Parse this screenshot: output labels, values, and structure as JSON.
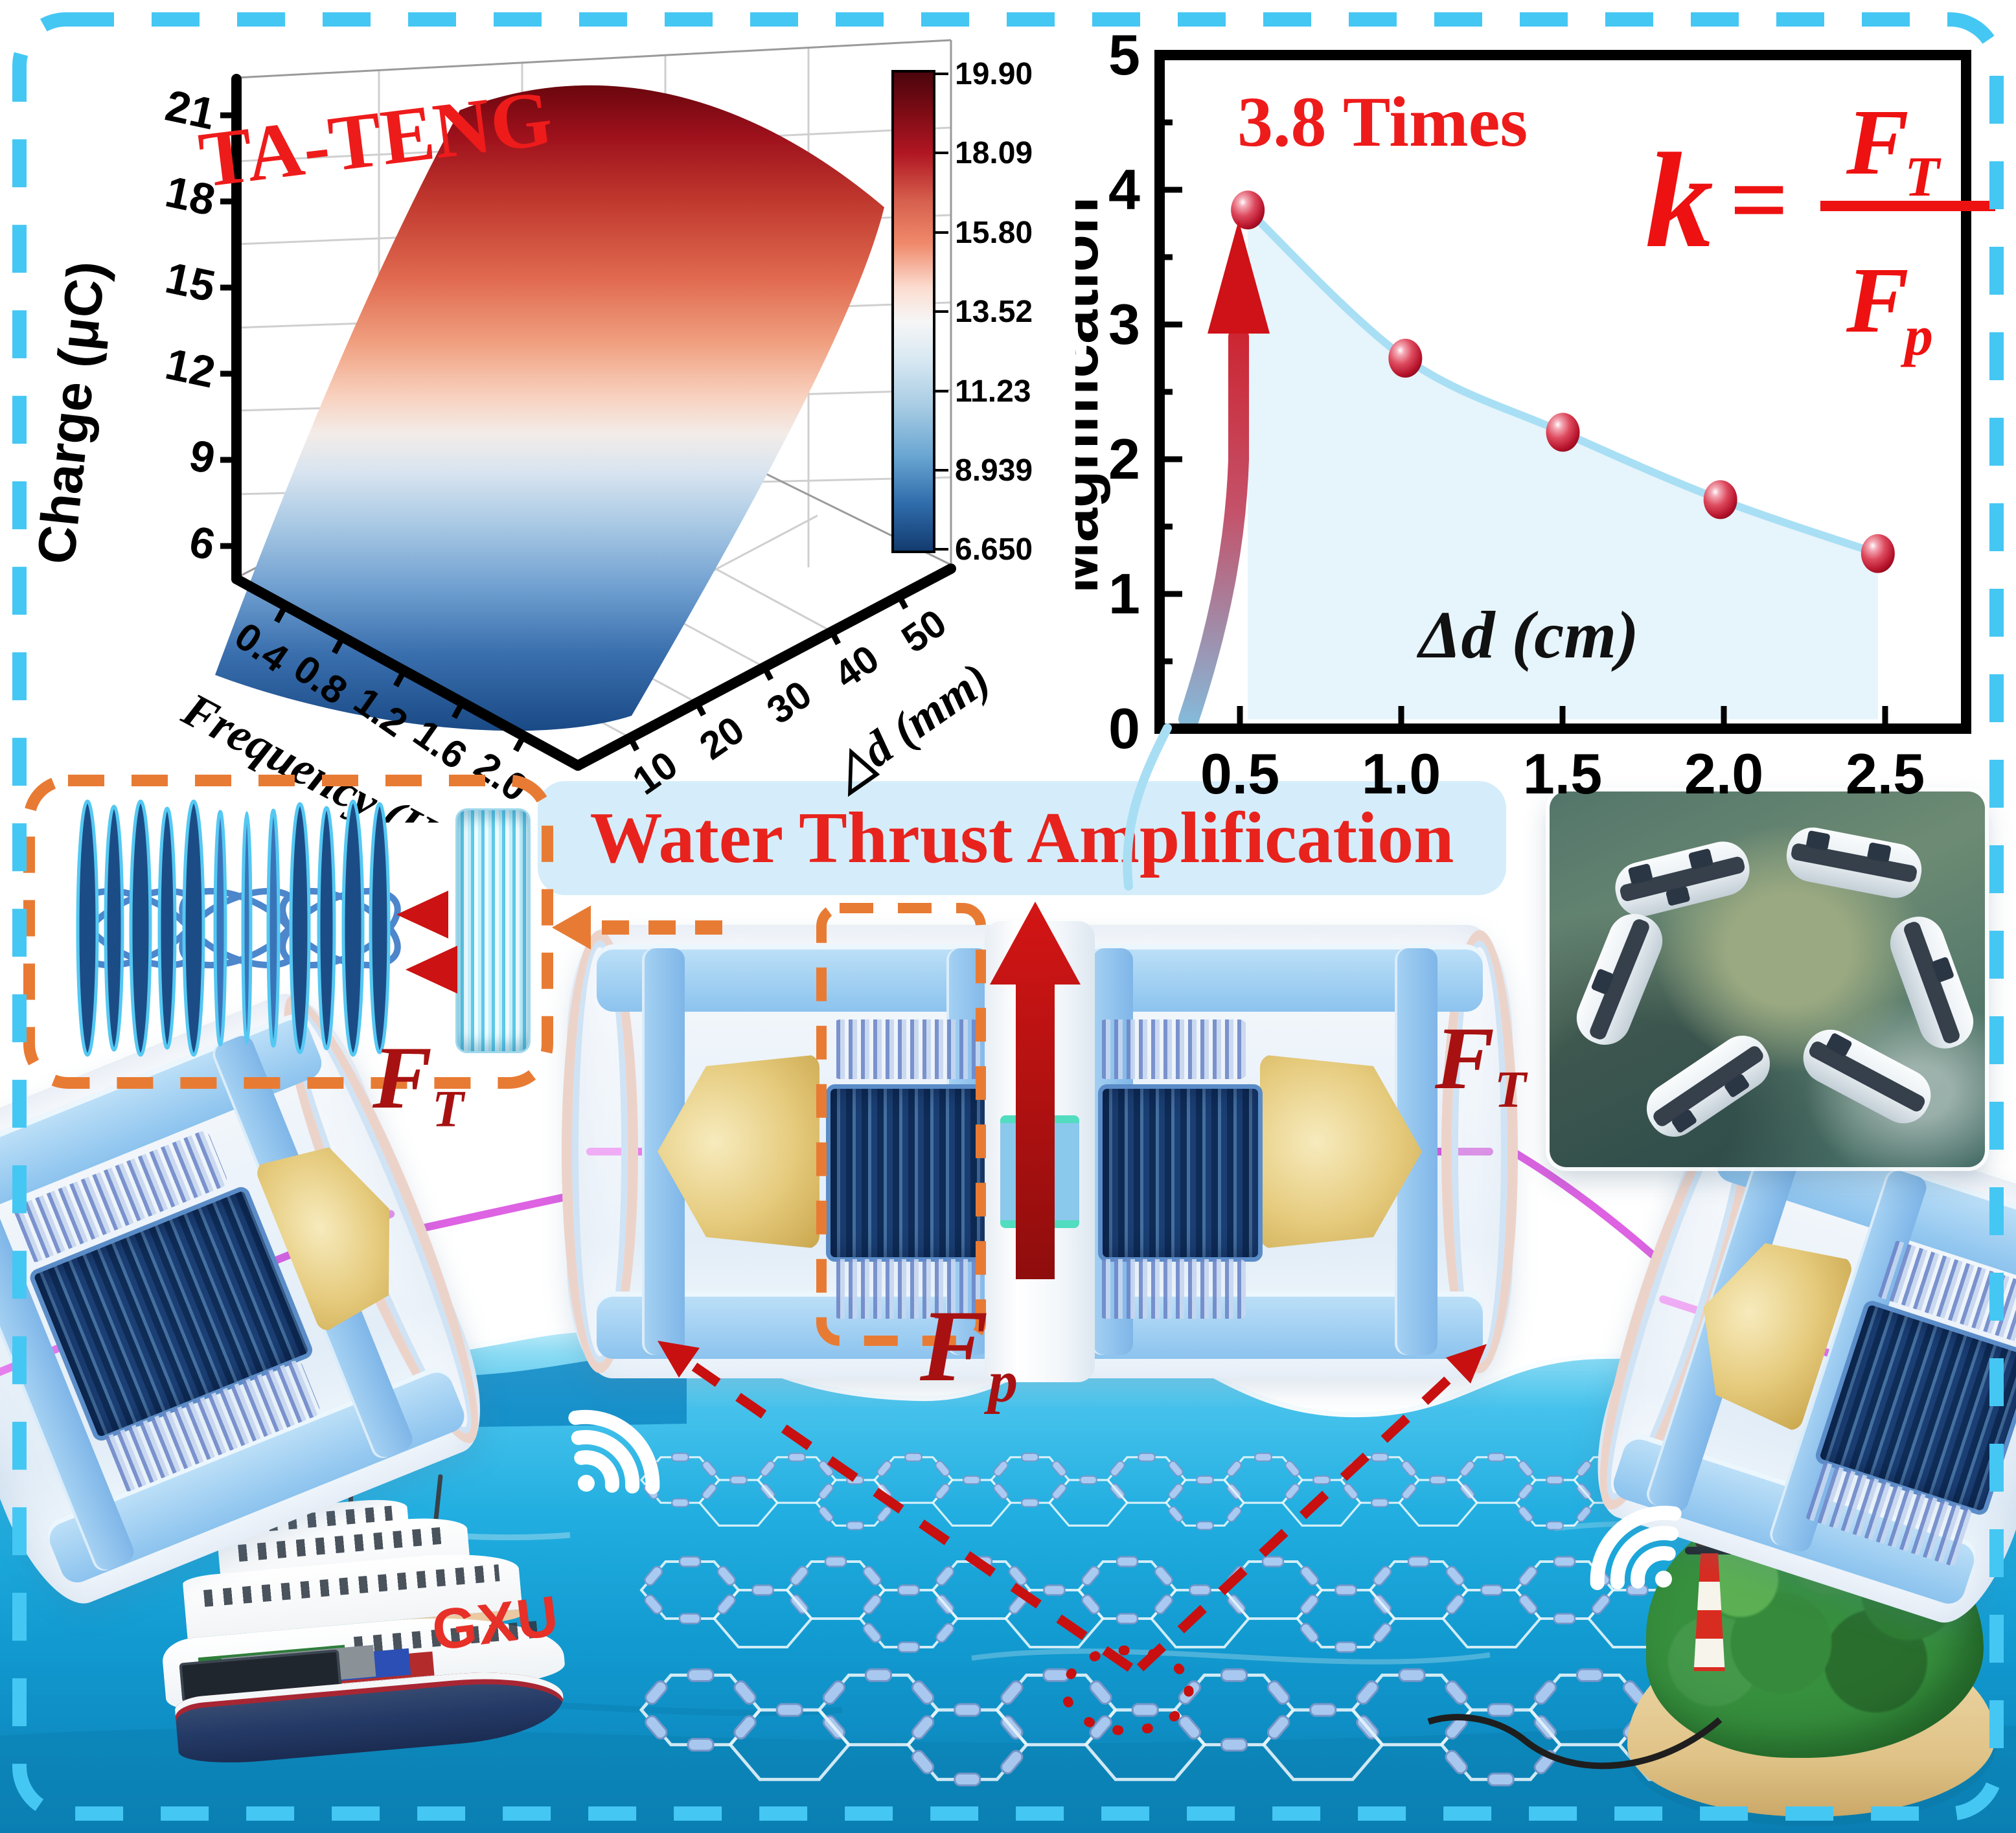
{
  "banner": {
    "text": "Water Thrust Amplification"
  },
  "annotations": {
    "thrust_force": {
      "base": "F",
      "sub": "T"
    },
    "pressure_force": {
      "base": "F",
      "sub": "p"
    },
    "ship_logo": "GXU"
  },
  "colors": {
    "border": "#45c7f3",
    "banner_bg": "#d5edfa",
    "accent_red": "#ec1c24",
    "dark_red": "#a81111",
    "orange_dash": "#e87b34",
    "water": "#22aee0",
    "device_blue": "#9fcef2",
    "rope_magenta": "#dd63e2",
    "curve_blue": "#a8dff5",
    "marker_red": "#c9203a"
  },
  "chart_data": [
    {
      "type": "surface",
      "title": "TA-TENG",
      "xlabel": "Frequency (Hz)",
      "xticks": [
        "0.4",
        "0.8",
        "1.2",
        "1.6",
        "2.0"
      ],
      "ylabel": "△d (mm)",
      "yticks": [
        "10",
        "20",
        "30",
        "40",
        "50"
      ],
      "zlabel": "Charge (μC)",
      "zticks": [
        "21",
        "18",
        "15",
        "12",
        "9",
        "6"
      ],
      "zlim": [
        6,
        21
      ],
      "colorbar_ticks": [
        "19.90",
        "18.09",
        "15.80",
        "13.52",
        "11.23",
        "8.939",
        "6.650"
      ],
      "colormap": "blue-white-red",
      "values_approx": {
        "frequency_hz": [
          0.4,
          0.8,
          1.2,
          1.6,
          2.0
        ],
        "delta_d_mm": [
          10,
          20,
          30,
          40,
          50
        ],
        "charge_uC": [
          [
            13.5,
            15.5,
            17.5,
            18.6,
            19.3
          ],
          [
            12.5,
            14.5,
            16.6,
            17.9,
            18.9
          ],
          [
            11.0,
            13.0,
            15.1,
            16.6,
            18.1
          ],
          [
            9.0,
            11.0,
            13.2,
            15.1,
            17.0
          ],
          [
            6.7,
            8.6,
            10.6,
            13.0,
            15.6
          ]
        ]
      }
    },
    {
      "type": "scatter",
      "x": [
        0.5,
        1.0,
        1.5,
        2.0,
        2.5
      ],
      "y": [
        3.85,
        2.75,
        2.2,
        1.7,
        1.3
      ],
      "xlabel": "Δd (cm)",
      "ylabel": "Magnification",
      "xticks": [
        "0.5",
        "1.0",
        "1.5",
        "2.0",
        "2.5"
      ],
      "yticks": [
        "0",
        "1",
        "2",
        "3",
        "4",
        "5"
      ],
      "xlim": [
        0.22,
        2.78
      ],
      "ylim": [
        0,
        5
      ],
      "annotation": "3.8 Times",
      "formula": {
        "lhs": "k",
        "eq": "=",
        "num_base": "F",
        "num_sub": "T",
        "den_base": "F",
        "den_sub": "p"
      },
      "grid": false,
      "legend_position": "none"
    }
  ]
}
